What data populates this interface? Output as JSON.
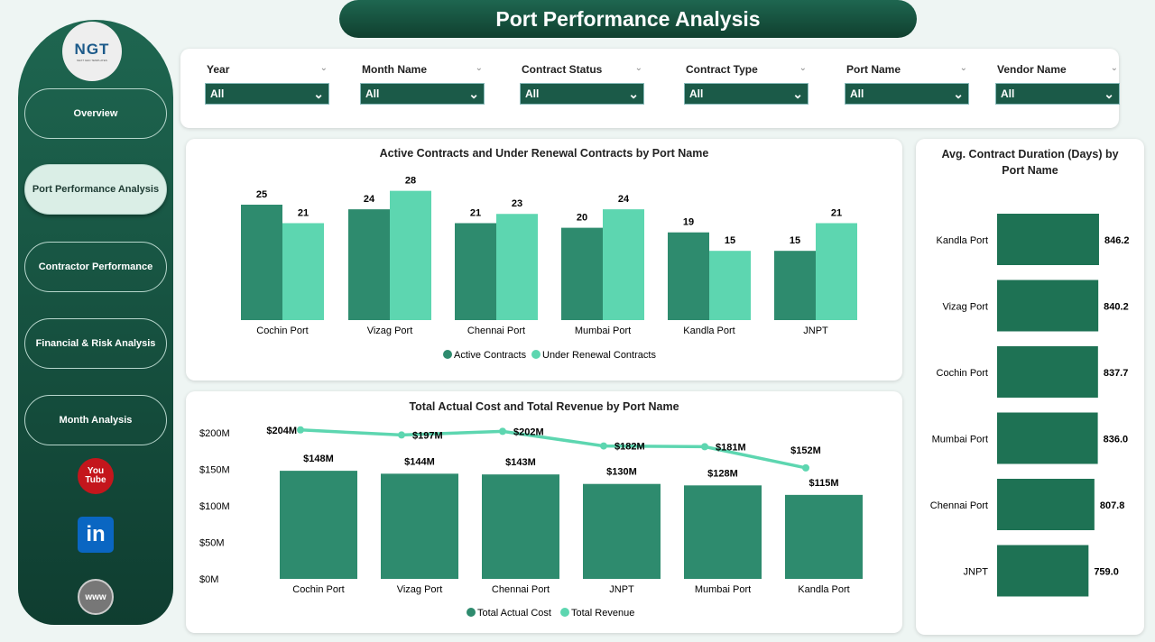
{
  "title": "Port Performance Analysis",
  "logo": {
    "text": "NGT",
    "subtitle": "NEXT GEN TEMPLATES"
  },
  "nav": [
    {
      "label": "Overview"
    },
    {
      "label": "Port Performance Analysis",
      "active": true
    },
    {
      "label": "Contractor Performance"
    },
    {
      "label": "Financial & Risk Analysis"
    },
    {
      "label": "Month Analysis"
    }
  ],
  "social": [
    {
      "icon": "youtube-icon",
      "label": "You Tube"
    },
    {
      "icon": "linkedin-icon",
      "label": "in"
    },
    {
      "icon": "globe-icon",
      "label": "www"
    }
  ],
  "filters": [
    {
      "label": "Year",
      "value": "All"
    },
    {
      "label": "Month Name",
      "value": "All"
    },
    {
      "label": "Contract Status",
      "value": "All"
    },
    {
      "label": "Contract Type",
      "value": "All"
    },
    {
      "label": "Port Name",
      "value": "All"
    },
    {
      "label": "Vendor Name",
      "value": "All"
    }
  ],
  "colors": {
    "dark": "#2e8b6e",
    "light": "#5dd6b0",
    "bar3": "#1e7254"
  },
  "chart_data": [
    {
      "type": "bar",
      "title": "Active Contracts and Under Renewal Contracts by Port Name",
      "categories": [
        "Cochin Port",
        "Vizag Port",
        "Chennai Port",
        "Mumbai Port",
        "Kandla Port",
        "JNPT"
      ],
      "series": [
        {
          "name": "Active Contracts",
          "values": [
            25,
            24,
            21,
            20,
            19,
            15
          ]
        },
        {
          "name": "Under Renewal Contracts",
          "values": [
            21,
            28,
            23,
            24,
            15,
            21
          ]
        }
      ],
      "legend": "bottom-center"
    },
    {
      "type": "bar+line",
      "title": "Total Actual Cost and Total Revenue by Port Name",
      "categories": [
        "Cochin Port",
        "Vizag Port",
        "Chennai Port",
        "JNPT",
        "Mumbai Port",
        "Kandla Port"
      ],
      "series": [
        {
          "name": "Total Actual Cost",
          "type": "bar",
          "values": [
            148,
            144,
            143,
            130,
            128,
            115
          ],
          "labels": [
            "$148M",
            "$144M",
            "$143M",
            "$130M",
            "$128M",
            "$115M"
          ]
        },
        {
          "name": "Total Revenue",
          "type": "line",
          "values": [
            204,
            197,
            202,
            182,
            181,
            152
          ],
          "labels": [
            "$204M",
            "$197M",
            "$202M",
            "$182M",
            "$181M",
            "$152M"
          ]
        }
      ],
      "yticks": [
        "$0M",
        "$50M",
        "$100M",
        "$150M",
        "$200M"
      ],
      "ytick_values": [
        0,
        50,
        100,
        150,
        200
      ],
      "unit": "$M",
      "legend": "bottom-center"
    },
    {
      "type": "horizontal-bar",
      "title": "Avg. Contract Duration (Days) by Port Name",
      "categories": [
        "Kandla Port",
        "Vizag Port",
        "Cochin Port",
        "Mumbai Port",
        "Chennai Port",
        "JNPT"
      ],
      "values": [
        846.2,
        840.2,
        837.7,
        836.0,
        807.8,
        759.0
      ],
      "labels": [
        "846.2",
        "840.2",
        "837.7",
        "836.0",
        "807.8",
        "759.0"
      ]
    }
  ]
}
